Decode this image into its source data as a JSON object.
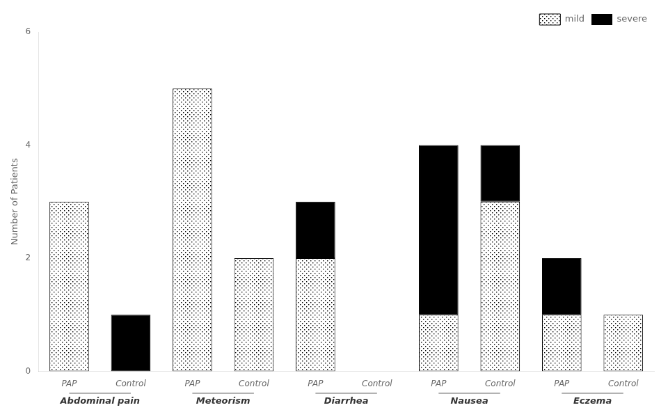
{
  "chart_data": {
    "type": "bar",
    "stacked": true,
    "categories": [
      "PAP",
      "Control",
      "PAP",
      "Control",
      "PAP",
      "Control",
      "PAP",
      "Control",
      "PAP",
      "Control"
    ],
    "groups": [
      "Abdominal pain",
      "Meteorism",
      "Diarrhea",
      "Nausea",
      "Eczema"
    ],
    "series": [
      {
        "name": "mild",
        "color": "white",
        "values": [
          3,
          0,
          5,
          2,
          2,
          0,
          1,
          3,
          1,
          1
        ]
      },
      {
        "name": "severe",
        "color": "black",
        "values": [
          0,
          1,
          0,
          0,
          1,
          0,
          3,
          1,
          1,
          0
        ]
      }
    ],
    "ylabel": "Number of Patients",
    "ylim": [
      0,
      6
    ],
    "yticks": [
      0,
      2,
      4,
      6
    ],
    "grid": false,
    "legend": "upper right"
  }
}
